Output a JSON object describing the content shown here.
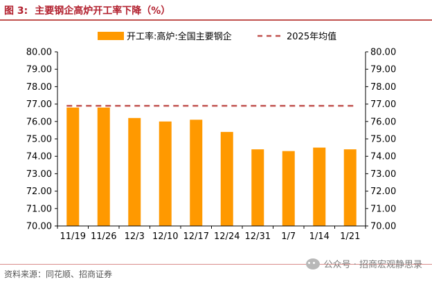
{
  "figure": {
    "number": "图 3:",
    "title": "主要钢企高炉开工率下降（%）"
  },
  "source": "资料来源：同花顺、招商证券",
  "watermark": "公众号 · 招商宏观静思录",
  "colors": {
    "title": "#b2202e",
    "bar": "#ff9900",
    "average_line": "#c0504d"
  },
  "chart_data": {
    "type": "bar",
    "categories": [
      "11/19",
      "11/26",
      "12/3",
      "12/10",
      "12/17",
      "12/24",
      "12/31",
      "1/7",
      "1/14",
      "1/21"
    ],
    "series": [
      {
        "name": "开工率:高炉:全国主要钢企",
        "type": "bar",
        "values": [
          76.8,
          76.8,
          76.2,
          76.0,
          76.1,
          75.4,
          74.4,
          74.3,
          74.5,
          74.4
        ]
      },
      {
        "name": "2025年均值",
        "type": "line",
        "style": "dashed",
        "value": 76.9
      }
    ],
    "ylim": [
      70.0,
      80.0
    ],
    "yticks": [
      "70.00",
      "71.00",
      "72.00",
      "73.00",
      "74.00",
      "75.00",
      "76.00",
      "77.00",
      "78.00",
      "79.00",
      "80.00"
    ],
    "secondary_yticks": [
      "70.00",
      "71.00",
      "72.00",
      "73.00",
      "74.00",
      "75.00",
      "76.00",
      "77.00",
      "78.00",
      "79.00",
      "80.00"
    ],
    "legend": "top-center",
    "grid": false
  }
}
